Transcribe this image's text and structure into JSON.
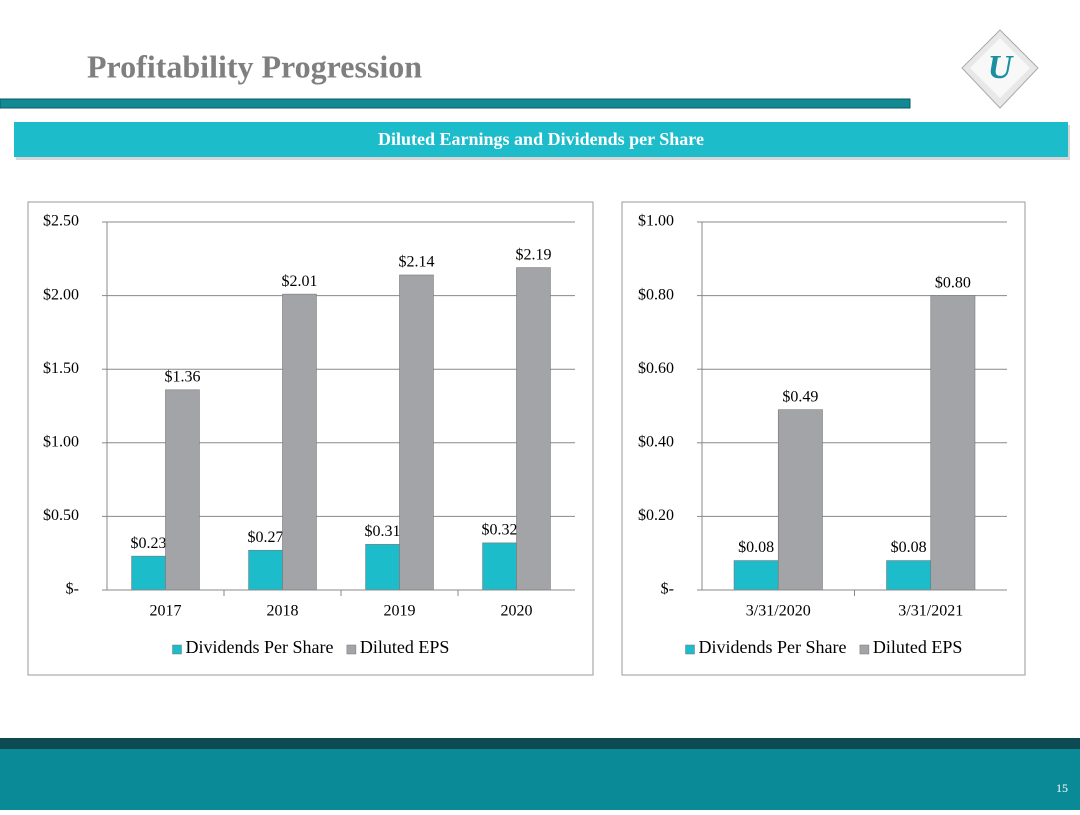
{
  "header": {
    "title": "Profitability Progression",
    "banner": "Diluted Earnings and Dividends per Share"
  },
  "footer": {
    "page_number": "15"
  },
  "chart_data": [
    {
      "type": "bar",
      "categories": [
        "2017",
        "2018",
        "2019",
        "2020"
      ],
      "series": [
        {
          "name": "Dividends Per Share",
          "color": "#1cbccb",
          "values": [
            0.23,
            0.27,
            0.31,
            0.32
          ],
          "value_labels": [
            "$0.23",
            "$0.27",
            "$0.31",
            "$0.32"
          ]
        },
        {
          "name": "Diluted EPS",
          "color": "#a3a4a8",
          "values": [
            1.36,
            2.01,
            2.14,
            2.19
          ],
          "value_labels": [
            "$1.36",
            "$2.01",
            "$2.14",
            "$2.19"
          ]
        }
      ],
      "ylim": [
        0,
        2.5
      ],
      "yticks": [
        {
          "value": 0,
          "label": "$-"
        },
        {
          "value": 0.5,
          "label": "$0.50"
        },
        {
          "value": 1,
          "label": "$1.00"
        },
        {
          "value": 1.5,
          "label": "$1.50"
        },
        {
          "value": 2,
          "label": "$2.00"
        },
        {
          "value": 2.5,
          "label": "$2.50"
        }
      ],
      "grid": true,
      "legend": "bottom"
    },
    {
      "type": "bar",
      "categories": [
        "3/31/2020",
        "3/31/2021"
      ],
      "series": [
        {
          "name": "Dividends Per Share",
          "color": "#1cbccb",
          "values": [
            0.08,
            0.08
          ],
          "value_labels": [
            "$0.08",
            "$0.08"
          ]
        },
        {
          "name": "Diluted EPS",
          "color": "#a3a4a8",
          "values": [
            0.49,
            0.8
          ],
          "value_labels": [
            "$0.49",
            "$0.80"
          ]
        }
      ],
      "ylim": [
        0,
        1
      ],
      "yticks": [
        {
          "value": 0,
          "label": "$-"
        },
        {
          "value": 0.2,
          "label": "$0.20"
        },
        {
          "value": 0.4,
          "label": "$0.40"
        },
        {
          "value": 0.6,
          "label": "$0.60"
        },
        {
          "value": 0.8,
          "label": "$0.80"
        },
        {
          "value": 1,
          "label": "$1.00"
        }
      ],
      "grid": true,
      "legend": "bottom"
    }
  ]
}
